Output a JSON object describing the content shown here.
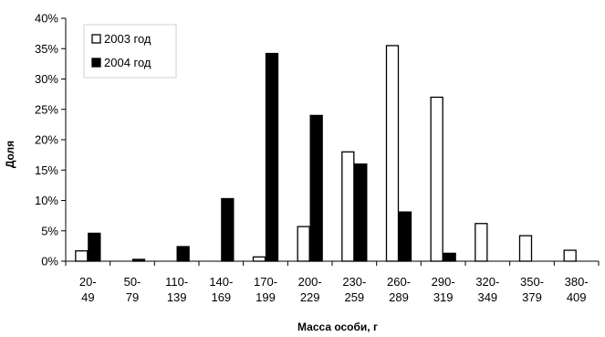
{
  "chart_data": {
    "type": "bar",
    "xlabel": "Масса особи, г",
    "ylabel": "Доля",
    "ylim": [
      0,
      40
    ],
    "yticks": [
      0,
      5,
      10,
      15,
      20,
      25,
      30,
      35,
      40
    ],
    "ytick_suffix": "%",
    "grid": false,
    "legend_position": "top-left",
    "categories": [
      [
        "20-",
        "49"
      ],
      [
        "50-",
        "79"
      ],
      [
        "110-",
        "139"
      ],
      [
        "140-",
        "169"
      ],
      [
        "170-",
        "199"
      ],
      [
        "200-",
        "229"
      ],
      [
        "230-",
        "259"
      ],
      [
        "260-",
        "289"
      ],
      [
        "290-",
        "319"
      ],
      [
        "320-",
        "349"
      ],
      [
        "350-",
        "379"
      ],
      [
        "380-",
        "409"
      ]
    ],
    "series": [
      {
        "name": "2003 год",
        "fill": "#ffffff",
        "stroke": "#000000",
        "values": [
          1.7,
          0,
          0,
          0,
          0.7,
          5.7,
          18,
          35.5,
          27,
          6.2,
          4.2,
          1.8
        ]
      },
      {
        "name": "2004 год",
        "fill": "#000000",
        "stroke": "#000000",
        "values": [
          4.6,
          0.3,
          2.4,
          10.3,
          34.2,
          24,
          16,
          8.1,
          1.3,
          0,
          0,
          0
        ]
      }
    ]
  }
}
